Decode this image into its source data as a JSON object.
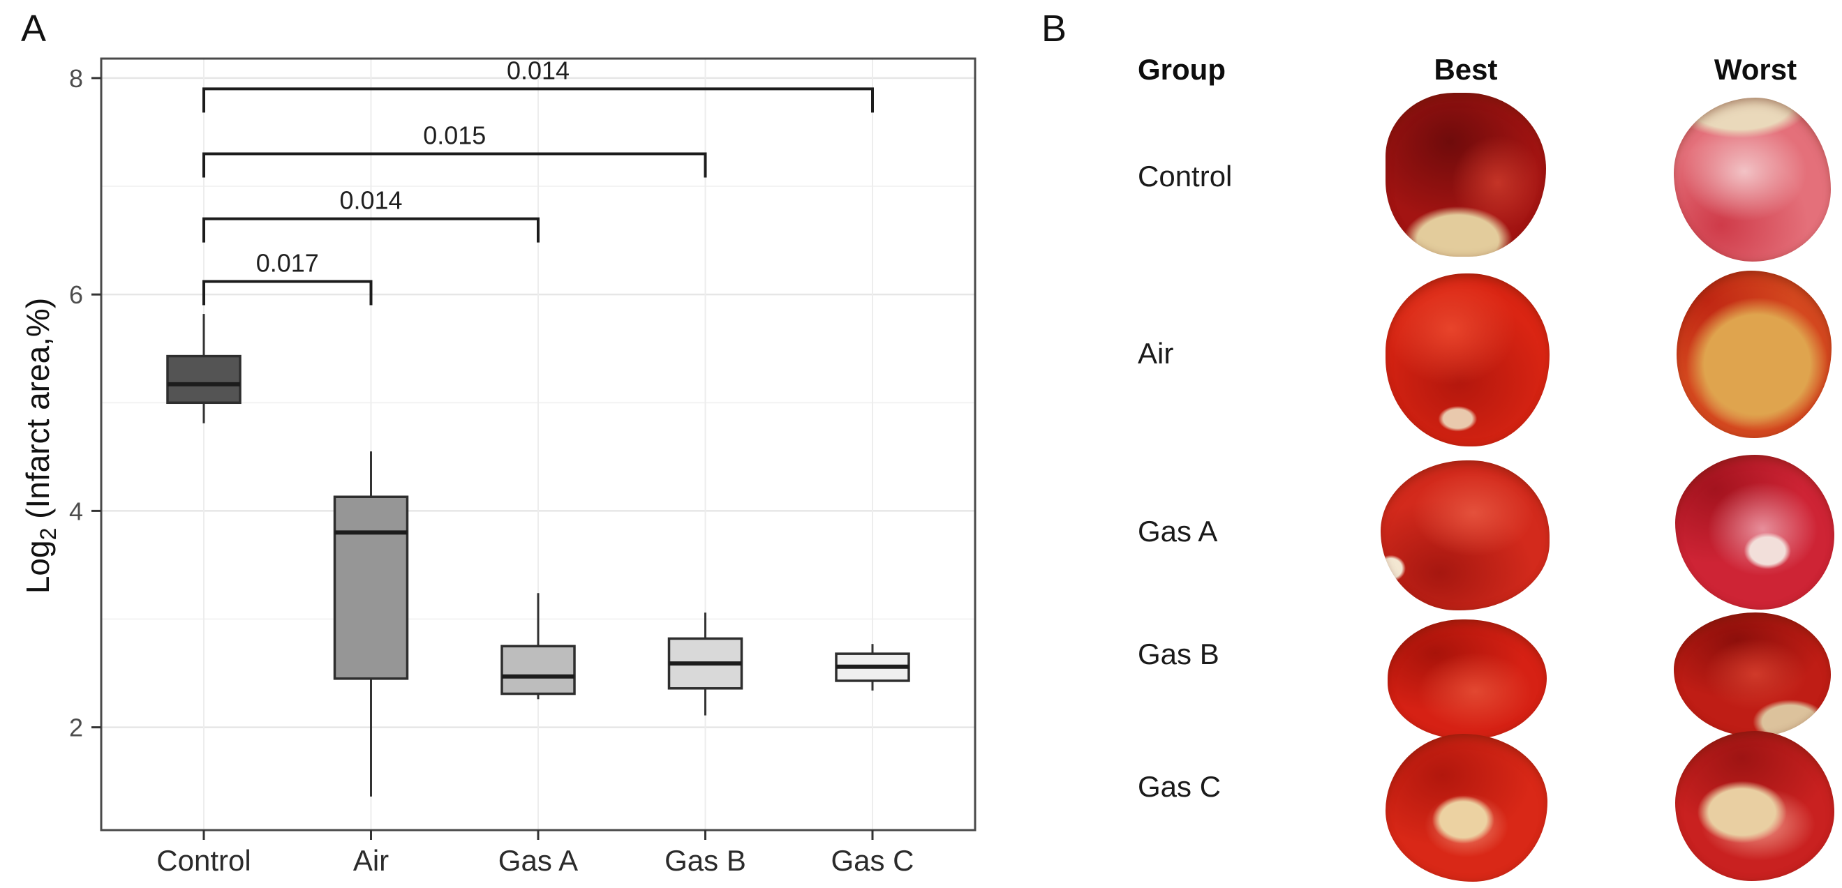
{
  "panels": {
    "a_label": "A",
    "b_label": "B"
  },
  "chart_data": {
    "type": "boxplot",
    "title": "",
    "xlabel": "",
    "ylabel": "Log2 (Infarct area,%)",
    "ylabel_parts": {
      "prefix": "Log",
      "subscript": "2",
      "suffix": " (Infarct area,%)"
    },
    "categories": [
      "Control",
      "Air",
      "Gas A",
      "Gas B",
      "Gas C"
    ],
    "ylim": [
      1.05,
      8.18
    ],
    "yticks": [
      2,
      4,
      6,
      8
    ],
    "grid": {
      "major_y": [
        2,
        4,
        6,
        8
      ],
      "minor_y": [
        3,
        5,
        7
      ]
    },
    "legend": "none",
    "series": [
      {
        "name": "Control",
        "whisker_low": 4.81,
        "q1": 5.0,
        "median": 5.17,
        "q3": 5.43,
        "whisker_high": 5.82,
        "fill": "#545454"
      },
      {
        "name": "Air",
        "whisker_low": 1.36,
        "q1": 2.45,
        "median": 3.8,
        "q3": 4.13,
        "whisker_high": 4.55,
        "fill": "#969696"
      },
      {
        "name": "Gas A",
        "whisker_low": 2.26,
        "q1": 2.31,
        "median": 2.47,
        "q3": 2.75,
        "whisker_high": 3.24,
        "fill": "#bdbdbd"
      },
      {
        "name": "Gas B",
        "whisker_low": 2.11,
        "q1": 2.36,
        "median": 2.59,
        "q3": 2.82,
        "whisker_high": 3.06,
        "fill": "#d9d9d9"
      },
      {
        "name": "Gas C",
        "whisker_low": 2.34,
        "q1": 2.43,
        "median": 2.56,
        "q3": 2.68,
        "whisker_high": 2.77,
        "fill": "#efefef"
      }
    ],
    "comparisons": [
      {
        "from": "Control",
        "to": "Gas C",
        "label": "0.014",
        "y": 7.9
      },
      {
        "from": "Control",
        "to": "Gas B",
        "label": "0.015",
        "y": 7.3
      },
      {
        "from": "Control",
        "to": "Gas A",
        "label": "0.014",
        "y": 6.7
      },
      {
        "from": "Control",
        "to": "Air",
        "label": "0.017",
        "y": 6.12
      }
    ],
    "style": {
      "box_border": "#2e2e2e",
      "median": "#1c1c1c",
      "whisker": "#333333",
      "bracket": "#1c1c1c",
      "panel_border": "#4a4a4a",
      "grid_major": "#e6e6e6",
      "grid_minor": "#f3f3f3",
      "tick_color": "#333333",
      "tick_label": "#4d4d4d",
      "axis_text": "#2b2b2b",
      "p_label": "#1f1f1f"
    }
  },
  "panel_b": {
    "headers": {
      "group": "Group",
      "best": "Best",
      "worst": "Worst"
    },
    "rows": [
      {
        "group": "Control",
        "best": {
          "desc": "dark red slice, cream patch at bottom",
          "base": "#a31412",
          "dark": "#6f0b0b",
          "dark_pos": "40% 30%",
          "light": "#c43427",
          "light_pos": "70% 55%",
          "light_size": "40% 40%",
          "patch": "#e3cc9c",
          "patch_pos": "45% 90%",
          "patch_size": "46% 28%"
        },
        "worst": {
          "desc": "pale pink mottled slice, cream top",
          "base": "#e4707a",
          "dark": "#cf3b49",
          "dark_pos": "30% 78%",
          "light": "#f2c3c6",
          "light_pos": "45% 45%",
          "light_size": "55% 42%",
          "patch": "#ead9bb",
          "patch_pos": "42% 4%",
          "patch_size": "60% 28%"
        }
      },
      {
        "group": "Air",
        "best": {
          "desc": "uniform bright red slice",
          "base": "#da2513",
          "dark": "#b3170d",
          "dark_pos": "45% 62%",
          "light": "#e8442b",
          "light_pos": "40% 32%",
          "light_size": "55% 45%",
          "patch": "#e9c9ad",
          "patch_pos": "44% 84%",
          "patch_size": "16% 10%"
        },
        "worst": {
          "desc": "orange slice with yellow mottled core",
          "base": "#d4481f",
          "dark": "#c02713",
          "dark_pos": "20% 18%",
          "light": "#e8c276",
          "light_pos": "46% 72%",
          "light_size": "42% 30%",
          "patch": "#dfa44e",
          "patch_pos": "52% 56%",
          "patch_size": "62% 54%"
        }
      },
      {
        "group": "Gas A",
        "best": {
          "desc": "red slice with darker swirl",
          "base": "#d32a1c",
          "dark": "#a61710",
          "dark_pos": "35% 75%",
          "light": "#e4513c",
          "light_pos": "55% 35%",
          "light_size": "50% 40%",
          "patch": "#f3e7d2",
          "patch_pos": "6% 72%",
          "patch_size": "12% 12%"
        },
        "worst": {
          "desc": "crimson slice with pink center and white flecks",
          "base": "#ce2435",
          "dark": "#a3131e",
          "dark_pos": "25% 22%",
          "light": "#e78f9b",
          "light_pos": "55% 48%",
          "light_size": "48% 42%",
          "patch": "#f2dfda",
          "patch_pos": "58% 62%",
          "patch_size": "20% 16%"
        }
      },
      {
        "group": "Gas B",
        "best": {
          "desc": "deep red smooth slice",
          "base": "#d62114",
          "dark": "#a8130a",
          "dark_pos": "30% 28%",
          "light": "#e24831",
          "light_pos": "55% 60%",
          "light_size": "50% 45%"
        },
        "worst": {
          "desc": "dark red slice, cream patch lower right",
          "base": "#bf1d15",
          "dark": "#8d0f0b",
          "dark_pos": "40% 22%",
          "light": "#d03a2a",
          "light_pos": "52% 50%",
          "light_size": "45% 40%",
          "patch": "#dcc29c",
          "patch_pos": "74% 88%",
          "patch_size": "32% 24%"
        }
      },
      {
        "group": "Gas C",
        "best": {
          "desc": "red slice with small cream center spot",
          "base": "#d92817",
          "dark": "#b2170d",
          "dark_pos": "35% 28%",
          "light": "#ee8d74",
          "light_pos": "50% 62%",
          "light_size": "36% 30%",
          "patch": "#ecd2a2",
          "patch_pos": "48% 58%",
          "patch_size": "26% 22%"
        },
        "worst": {
          "desc": "red slice with large cream patch center-left",
          "base": "#c92120",
          "dark": "#9e1413",
          "dark_pos": "42% 18%",
          "light": "#ef9a8a",
          "light_pos": "52% 62%",
          "light_size": "50% 34%",
          "patch": "#e9cfa2",
          "patch_pos": "42% 54%",
          "patch_size": "38% 28%"
        }
      }
    ]
  }
}
